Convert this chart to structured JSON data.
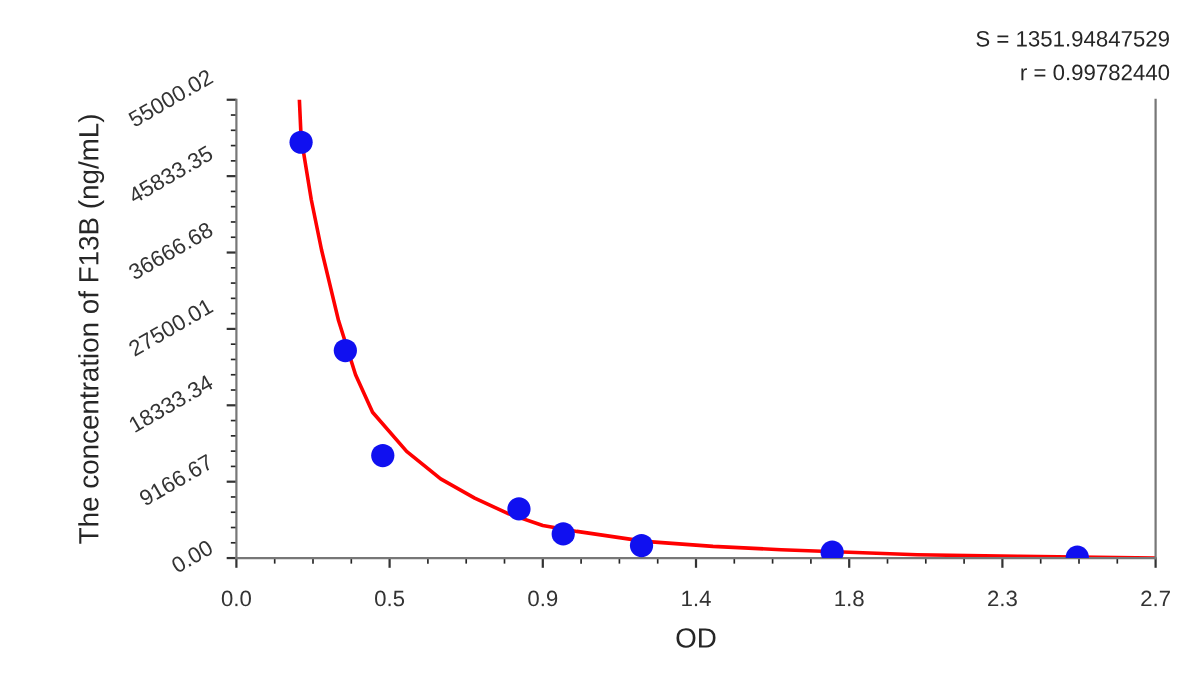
{
  "chart_data": {
    "type": "scatter",
    "xlabel": "OD",
    "ylabel": "The concentration of F13B (ng/mL)",
    "annotations": [
      "S = 1351.94847529",
      "r = 0.99782440"
    ],
    "series": [
      {
        "color": "#1010f0",
        "marker": "circle",
        "x": [
          0.19,
          0.32,
          0.43,
          0.83,
          0.96,
          1.19,
          1.75,
          2.47
        ],
        "values": [
          49900,
          24900,
          12300,
          5900,
          2900,
          1500,
          700,
          100
        ]
      },
      {
        "type": "line",
        "color": "#ff0000",
        "marker": "none",
        "line_style": "solid",
        "x": [
          0.185,
          0.19,
          0.22,
          0.25,
          0.3,
          0.35,
          0.4,
          0.5,
          0.6,
          0.7,
          0.8,
          0.9,
          1.0,
          1.2,
          1.4,
          1.6,
          1.8,
          2.0,
          2.3,
          2.7
        ],
        "values": [
          55000,
          50500,
          43000,
          37000,
          28500,
          22000,
          17500,
          12800,
          9500,
          7200,
          5300,
          3900,
          3200,
          2000,
          1400,
          1000,
          700,
          400,
          200,
          0
        ]
      }
    ],
    "xlim": [
      0,
      2.7
    ],
    "xticks": [
      {
        "value": 0,
        "label": "0.0"
      },
      {
        "value": 0.45,
        "label": "0.5"
      },
      {
        "value": 0.9,
        "label": "0.9"
      },
      {
        "value": 1.35,
        "label": "1.4"
      },
      {
        "value": 1.8,
        "label": "1.8"
      },
      {
        "value": 2.25,
        "label": "2.3"
      },
      {
        "value": 2.7,
        "label": "2.7"
      }
    ],
    "ylim": [
      0,
      55000.02
    ],
    "yticks": [
      {
        "value": 0,
        "label": "0.00"
      },
      {
        "value": 9166.67,
        "label": "9166.67"
      },
      {
        "value": 18333.34,
        "label": "18333.34"
      },
      {
        "value": 27500.01,
        "label": "27500.01"
      },
      {
        "value": 36666.68,
        "label": "36666.68"
      },
      {
        "value": 45833.35,
        "label": "45833.35"
      },
      {
        "value": 55000.02,
        "label": "55000.02"
      }
    ],
    "grid": false,
    "legend": false
  }
}
